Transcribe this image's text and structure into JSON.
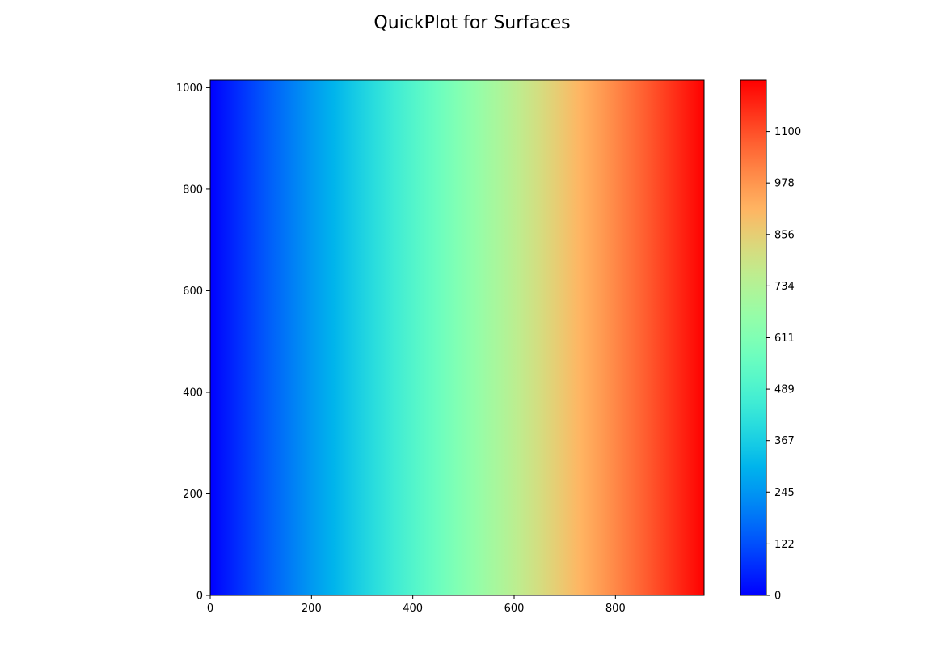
{
  "chart_data": {
    "type": "heatmap",
    "title": "QuickPlot for Surfaces",
    "xlabel": "",
    "ylabel": "",
    "xlim": [
      0,
      975
    ],
    "ylim": [
      0,
      1015
    ],
    "x_ticks": [
      0,
      200,
      400,
      600,
      800
    ],
    "y_ticks": [
      0,
      200,
      400,
      600,
      800,
      1000
    ],
    "surface": {
      "description_of_values": "value varies along x only (constant along y)",
      "x_at_value_samples": [
        0,
        975
      ],
      "value_range": [
        0,
        1222
      ]
    },
    "colorbar": {
      "colormap": "rainbow",
      "range": [
        0,
        1222
      ],
      "ticks": [
        0,
        122,
        245,
        367,
        489,
        611,
        734,
        856,
        978,
        1100
      ],
      "tick_labels": [
        "0",
        "122",
        "245",
        "367",
        "489",
        "611",
        "734",
        "856",
        "978",
        "1100"
      ]
    },
    "grid": false
  }
}
